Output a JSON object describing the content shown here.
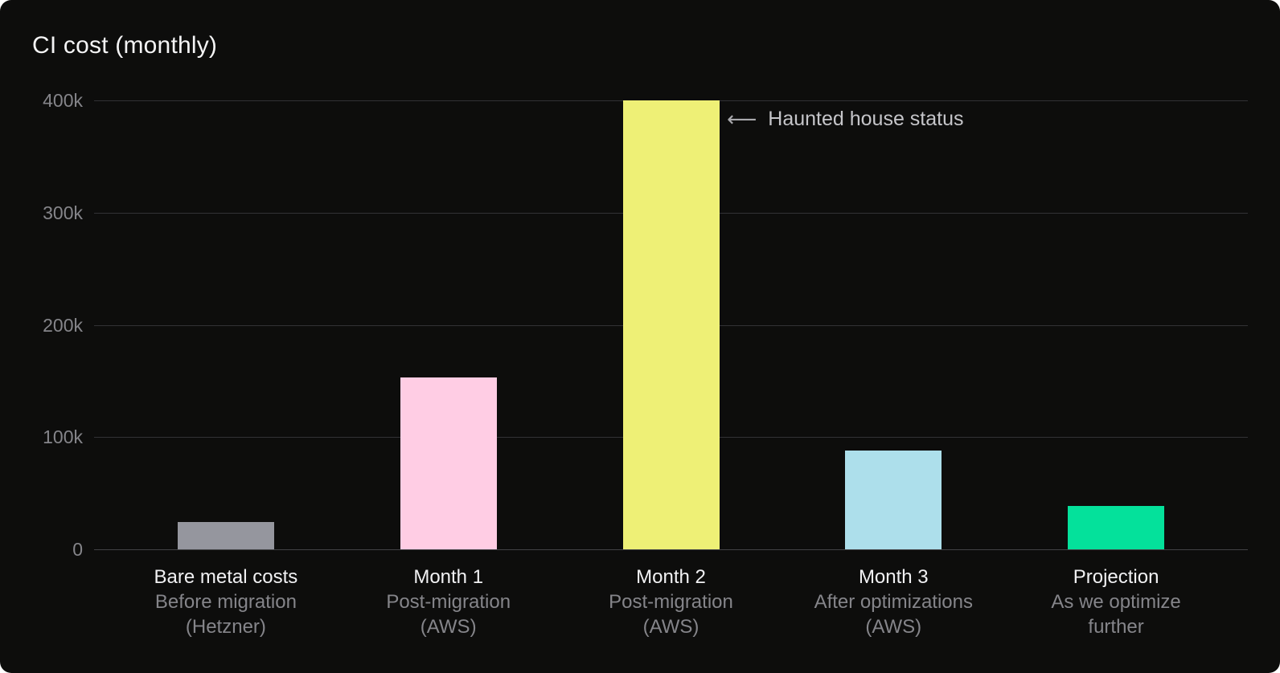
{
  "window": {
    "background": "#ffffff",
    "card_background": "#0d0d0c"
  },
  "chart_data": {
    "type": "bar",
    "title": "CI cost (monthly)",
    "xlabel": "",
    "ylabel": "",
    "ylim": [
      0,
      400000
    ],
    "grid": true,
    "legend": false,
    "yticks": [
      {
        "value": 0,
        "label": "0"
      },
      {
        "value": 100000,
        "label": "100k"
      },
      {
        "value": 200000,
        "label": "200k"
      },
      {
        "value": 300000,
        "label": "300k"
      },
      {
        "value": 400000,
        "label": "400k"
      }
    ],
    "bars": [
      {
        "label": "Bare metal costs",
        "sublabels": [
          "Before migration",
          "(Hetzner)"
        ],
        "value": 24000,
        "color": "#95969e"
      },
      {
        "label": "Month 1",
        "sublabels": [
          "Post-migration",
          "(AWS)"
        ],
        "value": 153000,
        "color": "#ffcde4"
      },
      {
        "label": "Month 2",
        "sublabels": [
          "Post-migration",
          "(AWS)"
        ],
        "value": 400000,
        "color": "#eef076"
      },
      {
        "label": "Month 3",
        "sublabels": [
          "After optimizations",
          "(AWS)"
        ],
        "value": 88000,
        "color": "#addfeb"
      },
      {
        "label": "Projection",
        "sublabels": [
          "As we optimize",
          "further"
        ],
        "value": 39000,
        "color": "#04e19b"
      }
    ],
    "annotation": {
      "arrow": "⟵",
      "text": "Haunted house status"
    },
    "colors": {
      "gridline": "#323235",
      "baseline": "#424245",
      "tick_text": "#85858a",
      "label_text": "#f1f1f3",
      "sublabel_text": "#85858a",
      "title_text": "#f4f4f5",
      "annotation_text": "#c5c5c9"
    }
  }
}
